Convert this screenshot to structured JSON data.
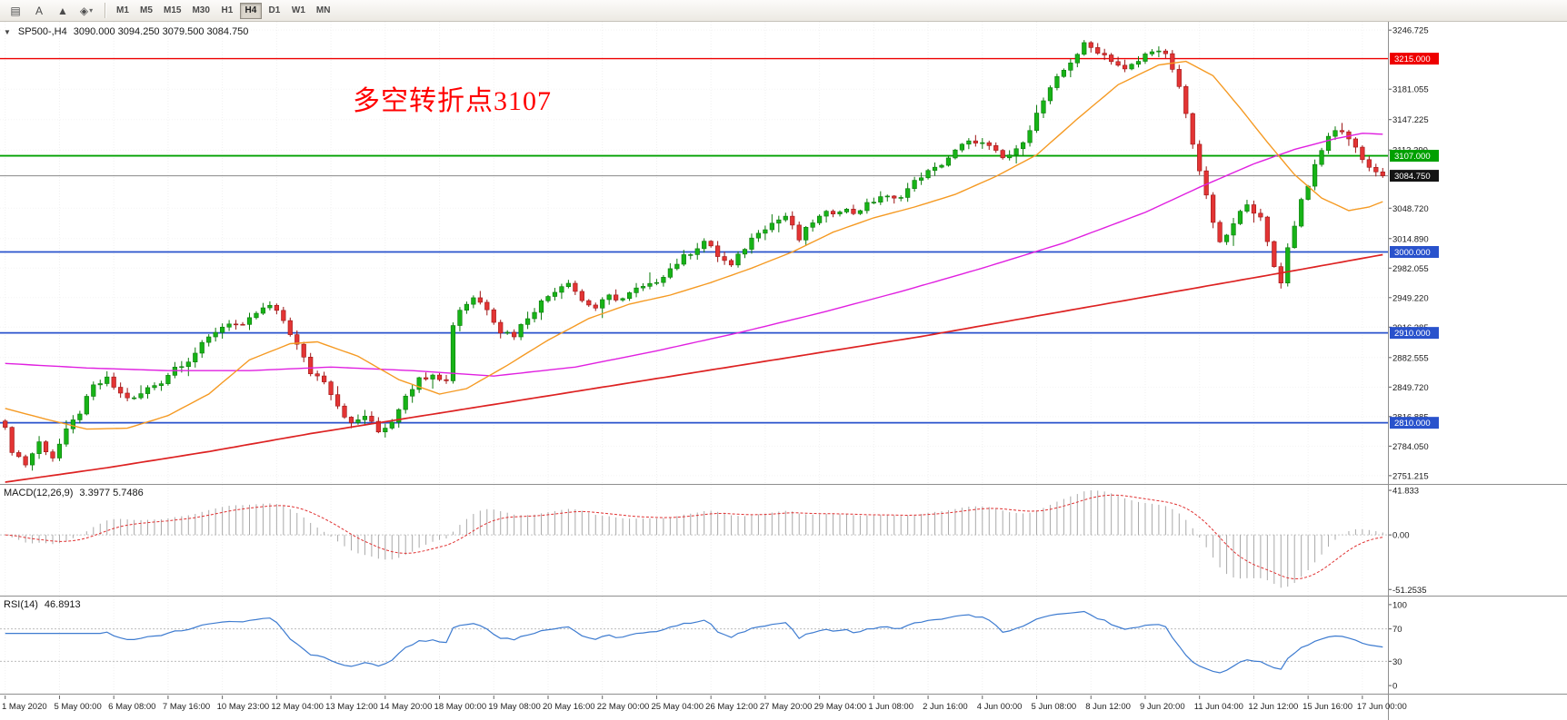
{
  "toolbar": {
    "tools": [
      {
        "name": "chart-window-icon",
        "glyph": "▤"
      },
      {
        "name": "text-label-tool-icon",
        "glyph": "A"
      },
      {
        "name": "cursor-tool-icon",
        "glyph": "▲"
      },
      {
        "name": "shapes-dropdown-icon",
        "glyph": "◈",
        "caret": "▾"
      }
    ],
    "timeframes": [
      "M1",
      "M5",
      "M15",
      "M30",
      "H1",
      "H4",
      "D1",
      "W1",
      "MN"
    ],
    "active_timeframe": "H4"
  },
  "chart": {
    "title": "SP500-,H4",
    "ohlc_display": "3090.000 3094.250 3079.500 3084.750",
    "annotation": {
      "text": "多空转折点3107",
      "color": "#ff0000"
    }
  },
  "chart_data": {
    "type": "candlestick",
    "symbol": "SP500-",
    "timeframe": "H4",
    "bars_total": 204,
    "ohlc_last": {
      "open": 3090.0,
      "high": 3094.25,
      "low": 3079.5,
      "close": 3084.75
    },
    "colors": {
      "up": "#17b317",
      "up_edge": "#0b7a0b",
      "down": "#e33434",
      "down_edge": "#9c1414",
      "ma_fast": "#f59a23",
      "ma_mid": "#e020e0",
      "ma_slow": "#dd2222",
      "macd_hist": "#a9a9a9",
      "macd_signal": "#e03030",
      "rsi": "#3d7bd0"
    },
    "close_waypoints": [
      [
        0,
        2802
      ],
      [
        1,
        2780
      ],
      [
        3,
        2764
      ],
      [
        5,
        2788
      ],
      [
        7,
        2772
      ],
      [
        9,
        2800
      ],
      [
        11,
        2822
      ],
      [
        13,
        2850
      ],
      [
        15,
        2858
      ],
      [
        17,
        2842
      ],
      [
        19,
        2836
      ],
      [
        21,
        2848
      ],
      [
        23,
        2856
      ],
      [
        25,
        2872
      ],
      [
        27,
        2880
      ],
      [
        29,
        2896
      ],
      [
        31,
        2912
      ],
      [
        33,
        2922
      ],
      [
        35,
        2916
      ],
      [
        37,
        2932
      ],
      [
        39,
        2940
      ],
      [
        41,
        2924
      ],
      [
        43,
        2896
      ],
      [
        45,
        2866
      ],
      [
        47,
        2858
      ],
      [
        49,
        2830
      ],
      [
        51,
        2808
      ],
      [
        53,
        2818
      ],
      [
        55,
        2800
      ],
      [
        57,
        2812
      ],
      [
        59,
        2842
      ],
      [
        61,
        2858
      ],
      [
        63,
        2866
      ],
      [
        65,
        2856
      ],
      [
        66,
        2920
      ],
      [
        67,
        2936
      ],
      [
        69,
        2950
      ],
      [
        71,
        2938
      ],
      [
        73,
        2912
      ],
      [
        75,
        2908
      ],
      [
        77,
        2928
      ],
      [
        79,
        2944
      ],
      [
        81,
        2958
      ],
      [
        83,
        2968
      ],
      [
        85,
        2946
      ],
      [
        87,
        2938
      ],
      [
        89,
        2950
      ],
      [
        91,
        2948
      ],
      [
        93,
        2958
      ],
      [
        95,
        2962
      ],
      [
        97,
        2975
      ],
      [
        99,
        2988
      ],
      [
        101,
        3000
      ],
      [
        103,
        3012
      ],
      [
        105,
        2996
      ],
      [
        107,
        2984
      ],
      [
        109,
        3005
      ],
      [
        111,
        3024
      ],
      [
        113,
        3032
      ],
      [
        115,
        3040
      ],
      [
        117,
        3014
      ],
      [
        119,
        3034
      ],
      [
        121,
        3042
      ],
      [
        123,
        3048
      ],
      [
        125,
        3044
      ],
      [
        127,
        3052
      ],
      [
        129,
        3062
      ],
      [
        131,
        3058
      ],
      [
        133,
        3070
      ],
      [
        135,
        3085
      ],
      [
        137,
        3092
      ],
      [
        139,
        3105
      ],
      [
        141,
        3118
      ],
      [
        143,
        3124
      ],
      [
        145,
        3116
      ],
      [
        147,
        3104
      ],
      [
        149,
        3112
      ],
      [
        151,
        3138
      ],
      [
        153,
        3168
      ],
      [
        155,
        3192
      ],
      [
        157,
        3212
      ],
      [
        159,
        3230
      ],
      [
        161,
        3224
      ],
      [
        163,
        3214
      ],
      [
        165,
        3202
      ],
      [
        167,
        3212
      ],
      [
        169,
        3226
      ],
      [
        171,
        3218
      ],
      [
        173,
        3184
      ],
      [
        175,
        3122
      ],
      [
        177,
        3060
      ],
      [
        179,
        3008
      ],
      [
        181,
        3030
      ],
      [
        183,
        3056
      ],
      [
        185,
        3036
      ],
      [
        187,
        2984
      ],
      [
        188,
        2968
      ],
      [
        189,
        3004
      ],
      [
        191,
        3058
      ],
      [
        193,
        3094
      ],
      [
        195,
        3130
      ],
      [
        197,
        3136
      ],
      [
        199,
        3116
      ],
      [
        201,
        3094
      ],
      [
        202,
        3090
      ],
      [
        203,
        3084.75
      ]
    ],
    "overlays": {
      "ma_fast": [
        [
          0,
          2826
        ],
        [
          6,
          2814
        ],
        [
          12,
          2803
        ],
        [
          18,
          2804
        ],
        [
          24,
          2818
        ],
        [
          30,
          2842
        ],
        [
          36,
          2880
        ],
        [
          42,
          2898
        ],
        [
          46,
          2900
        ],
        [
          52,
          2884
        ],
        [
          58,
          2858
        ],
        [
          64,
          2842
        ],
        [
          68,
          2848
        ],
        [
          74,
          2874
        ],
        [
          80,
          2902
        ],
        [
          86,
          2926
        ],
        [
          92,
          2942
        ],
        [
          98,
          2952
        ],
        [
          104,
          2966
        ],
        [
          110,
          2982
        ],
        [
          116,
          3000
        ],
        [
          122,
          3022
        ],
        [
          128,
          3038
        ],
        [
          134,
          3050
        ],
        [
          140,
          3064
        ],
        [
          146,
          3084
        ],
        [
          152,
          3108
        ],
        [
          158,
          3148
        ],
        [
          164,
          3186
        ],
        [
          170,
          3208
        ],
        [
          174,
          3212
        ],
        [
          178,
          3196
        ],
        [
          182,
          3160
        ],
        [
          186,
          3122
        ],
        [
          190,
          3086
        ],
        [
          194,
          3060
        ],
        [
          198,
          3046
        ],
        [
          201,
          3050
        ],
        [
          203,
          3056
        ]
      ],
      "ma_mid": [
        [
          0,
          2876
        ],
        [
          12,
          2871
        ],
        [
          24,
          2868
        ],
        [
          36,
          2868
        ],
        [
          48,
          2872
        ],
        [
          60,
          2868
        ],
        [
          72,
          2862
        ],
        [
          84,
          2872
        ],
        [
          96,
          2890
        ],
        [
          108,
          2910
        ],
        [
          120,
          2932
        ],
        [
          132,
          2956
        ],
        [
          144,
          2982
        ],
        [
          156,
          3010
        ],
        [
          168,
          3044
        ],
        [
          176,
          3072
        ],
        [
          184,
          3098
        ],
        [
          190,
          3114
        ],
        [
          196,
          3126
        ],
        [
          200,
          3132
        ],
        [
          203,
          3131
        ]
      ],
      "ma_slow": [
        [
          0,
          2744
        ],
        [
          15,
          2760
        ],
        [
          30,
          2778
        ],
        [
          45,
          2798
        ],
        [
          60,
          2816
        ],
        [
          75,
          2834
        ],
        [
          90,
          2852
        ],
        [
          105,
          2870
        ],
        [
          120,
          2888
        ],
        [
          135,
          2906
        ],
        [
          150,
          2926
        ],
        [
          165,
          2946
        ],
        [
          180,
          2966
        ],
        [
          192,
          2982
        ],
        [
          203,
          2997
        ]
      ]
    },
    "price_axis": {
      "min": 2742,
      "max": 3256,
      "ticks": [
        [
          3246.725,
          "3246.725"
        ],
        [
          3181.055,
          "3181.055"
        ],
        [
          3147.225,
          "3147.225"
        ],
        [
          3113.39,
          "3113.390"
        ],
        [
          3048.72,
          "3048.720"
        ],
        [
          3014.89,
          "3014.890"
        ],
        [
          2982.055,
          "2982.055"
        ],
        [
          2949.22,
          "2949.220"
        ],
        [
          2916.385,
          "2916.385"
        ],
        [
          2882.555,
          "2882.555"
        ],
        [
          2849.72,
          "2849.720"
        ],
        [
          2816.885,
          "2816.885"
        ],
        [
          2784.05,
          "2784.050"
        ],
        [
          2751.215,
          "2751.215"
        ]
      ]
    },
    "level_lines": [
      [
        3215.0,
        "#ee0000",
        1.4
      ],
      [
        3107.0,
        "#00a000",
        1.8
      ],
      [
        3084.75,
        "#888888",
        1.0
      ],
      [
        3000.0,
        "#2952cc",
        1.8
      ],
      [
        2910.0,
        "#2952cc",
        1.8
      ],
      [
        2810.0,
        "#2952cc",
        1.8
      ]
    ],
    "price_badges": [
      [
        3215.0,
        "3215.000",
        "#ee0000"
      ],
      [
        3107.0,
        "3107.000",
        "#00a000"
      ],
      [
        3084.75,
        "3084.750",
        "#141414"
      ],
      [
        3000.0,
        "3000.000",
        "#2952cc"
      ],
      [
        2910.0,
        "2910.000",
        "#2952cc"
      ],
      [
        2810.0,
        "2810.000",
        "#2952cc"
      ]
    ],
    "macd": {
      "label": "MACD(12,26,9)",
      "values": "3.3977 5.7486",
      "fast": 12,
      "slow": 26,
      "signal": 9,
      "axis": [
        [
          41.833,
          "41.833"
        ],
        [
          0,
          "0.00"
        ],
        [
          -51.2535,
          "-51.2535"
        ]
      ],
      "range": [
        -57,
        47
      ],
      "min_pin": -51.2535,
      "max_pin": 41.833
    },
    "rsi": {
      "label": "RSI(14)",
      "value": "46.8913",
      "period": 14,
      "levels": [
        70,
        30
      ],
      "axis": [
        [
          100,
          "100"
        ],
        [
          70,
          "70"
        ],
        [
          30,
          "30"
        ],
        [
          0,
          "0"
        ]
      ],
      "range": [
        -10,
        110
      ]
    },
    "time_labels": [
      "1 May 2020",
      "5 May 00:00",
      "6 May 08:00",
      "7 May 16:00",
      "10 May 23:00",
      "12 May 04:00",
      "13 May 12:00",
      "14 May 20:00",
      "18 May 00:00",
      "19 May 08:00",
      "20 May 16:00",
      "22 May 00:00",
      "25 May 04:00",
      "26 May 12:00",
      "27 May 20:00",
      "29 May 04:00",
      "1 Jun 08:00",
      "2 Jun 16:00",
      "4 Jun 00:00",
      "5 Jun 08:00",
      "8 Jun 12:00",
      "9 Jun 20:00",
      "11 Jun 04:00",
      "12 Jun 12:00",
      "15 Jun 16:00",
      "17 Jun 00:00"
    ],
    "label_every_bars": 8
  }
}
